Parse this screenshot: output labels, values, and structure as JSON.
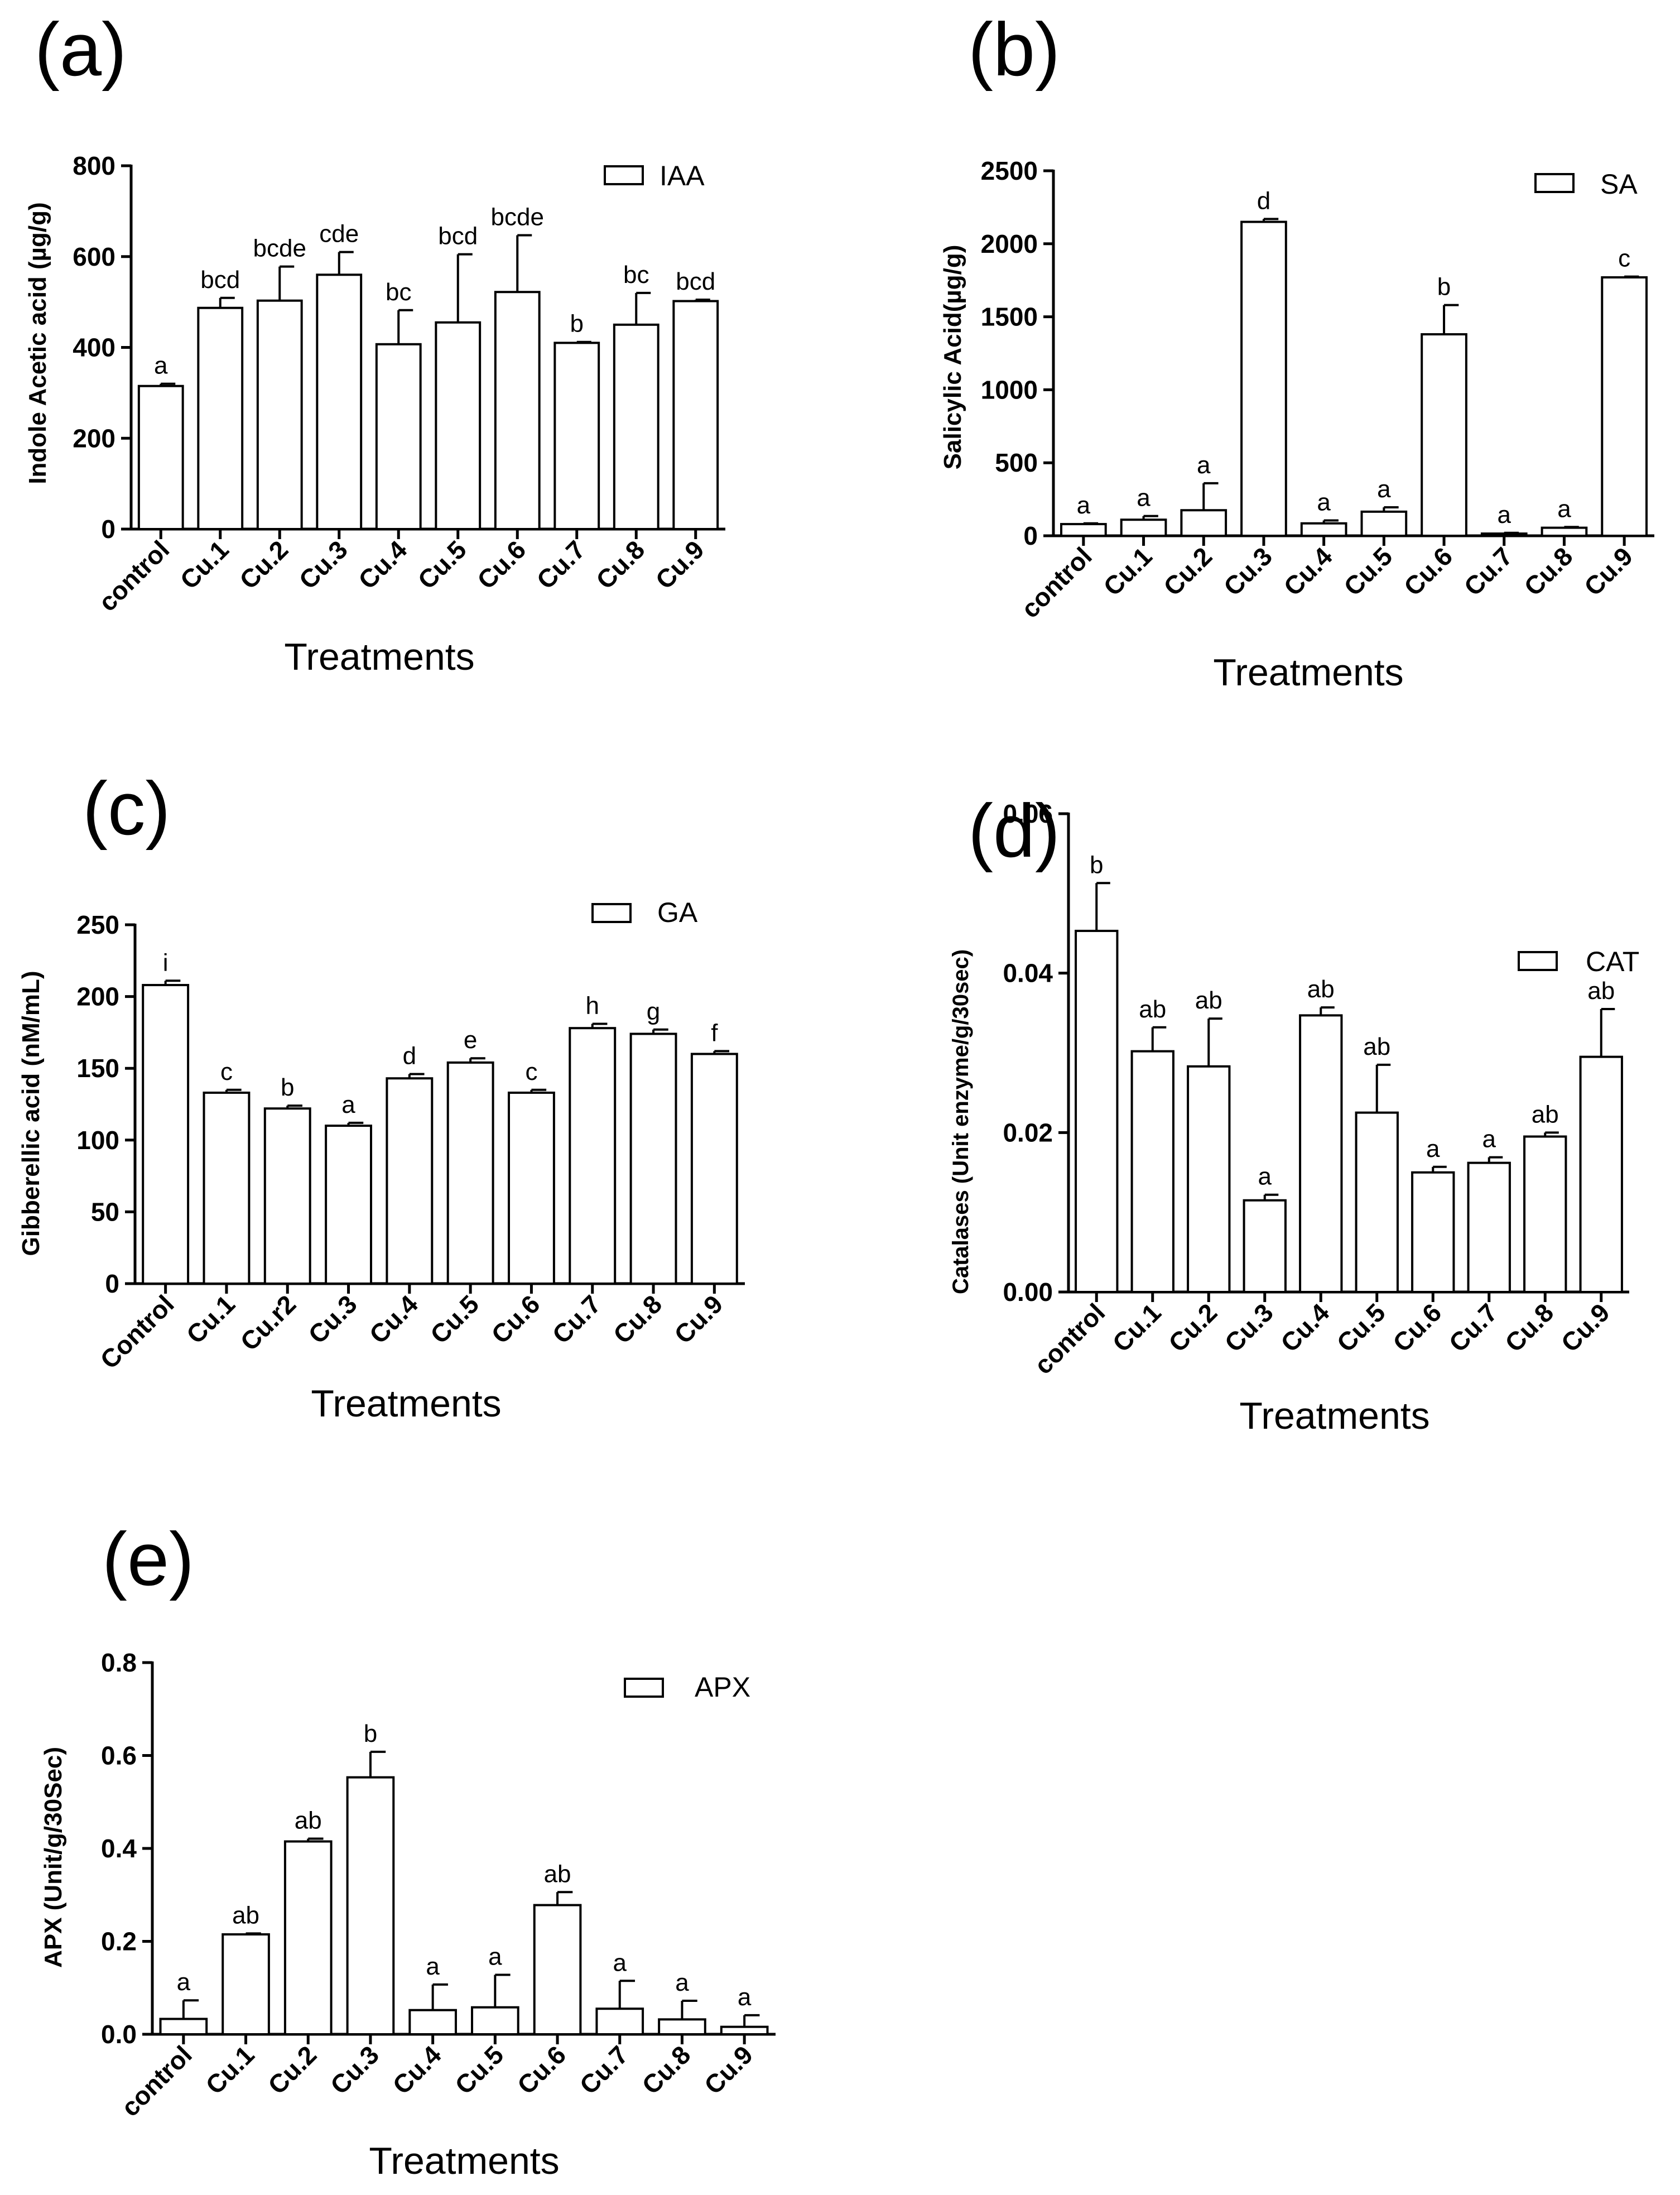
{
  "colors": {
    "bar_fill": "#ffffff",
    "stroke": "#000000",
    "background": "#ffffff"
  },
  "chart_data": [
    {
      "type": "bar",
      "panel_label": "(a)",
      "ylabel": "Indole Acetic acid (µg/g)",
      "xlabel": "Treatments",
      "legend": "IAA",
      "ylim": [
        0,
        800
      ],
      "yticks": [
        "0",
        "200",
        "400",
        "600",
        "800"
      ],
      "categories": [
        "control",
        "Cu.1",
        "Cu.2",
        "Cu.3",
        "Cu.4",
        "Cu.5",
        "Cu.6",
        "Cu.7",
        "Cu.8",
        "Cu.9"
      ],
      "values": [
        315,
        487,
        503,
        560,
        407,
        455,
        522,
        410,
        450,
        502
      ],
      "errors": [
        5,
        22,
        75,
        50,
        75,
        150,
        125,
        2,
        70,
        3
      ],
      "labels": [
        "a",
        "bcd",
        "bcde",
        "cde",
        "bc",
        "bcd",
        "bcde",
        "b",
        "bc",
        "bcd"
      ]
    },
    {
      "type": "bar",
      "panel_label": "(b)",
      "ylabel": "Salicylic Acid(µg/g)",
      "xlabel": "Treatments",
      "legend": "SA",
      "ylim": [
        0,
        2500
      ],
      "yticks": [
        "0",
        "500",
        "1000",
        "1500",
        "2000",
        "2500"
      ],
      "categories": [
        "control",
        "Cu.1",
        "Cu.2",
        "Cu.3",
        "Cu.4",
        "Cu.5",
        "Cu.6",
        "Cu.7",
        "Cu.8",
        "Cu.9"
      ],
      "values": [
        80,
        110,
        175,
        2150,
        85,
        165,
        1380,
        15,
        55,
        1770
      ],
      "errors": [
        5,
        25,
        185,
        20,
        20,
        30,
        200,
        5,
        5,
        5
      ],
      "labels": [
        "a",
        "a",
        "a",
        "d",
        "a",
        "a",
        "b",
        "a",
        "a",
        "c"
      ]
    },
    {
      "type": "bar",
      "panel_label": "(c)",
      "ylabel": "Gibberellic acid (nM/mL)",
      "xlabel": "Treatments",
      "legend": "GA",
      "ylim": [
        0,
        250
      ],
      "yticks": [
        "0",
        "50",
        "100",
        "150",
        "200",
        "250"
      ],
      "categories": [
        "Control",
        "Cu.1",
        "Cu.r2",
        "Cu.3",
        "Cu.4",
        "Cu.5",
        "Cu.6",
        "Cu.7",
        "Cu.8",
        "Cu.9"
      ],
      "values": [
        208,
        133,
        122,
        110,
        143,
        154,
        133,
        178,
        174,
        160
      ],
      "errors": [
        3,
        2,
        2,
        2,
        3,
        3,
        2,
        3,
        3,
        2
      ],
      "labels": [
        "i",
        "c",
        "b",
        "a",
        "d",
        "e",
        "c",
        "h",
        "g",
        "f"
      ]
    },
    {
      "type": "bar",
      "panel_label": "(d)",
      "ylabel": "Catalases (Unit enzyme/g/30sec)",
      "xlabel": "Treatments",
      "legend": "CAT",
      "ylim": [
        0,
        0.06
      ],
      "yticks": [
        "0.00",
        "0.02",
        "0.04",
        "0.06"
      ],
      "categories": [
        "control",
        "Cu.1",
        "Cu.2",
        "Cu.3",
        "Cu.4",
        "Cu.5",
        "Cu.6",
        "Cu.7",
        "Cu.8",
        "Cu.9"
      ],
      "values": [
        0.0453,
        0.0302,
        0.0283,
        0.0115,
        0.0347,
        0.0225,
        0.015,
        0.0162,
        0.0195,
        0.0295
      ],
      "errors": [
        0.006,
        0.003,
        0.006,
        0.0007,
        0.001,
        0.006,
        0.0007,
        0.0007,
        0.0005,
        0.006
      ],
      "labels": [
        "b",
        "ab",
        "ab",
        "a",
        "ab",
        "ab",
        "a",
        "a",
        "ab",
        "ab"
      ]
    },
    {
      "type": "bar",
      "panel_label": "(e)",
      "ylabel": "APX (Unit/g/30Sec)",
      "xlabel": "Treatments",
      "legend": "APX",
      "ylim": [
        0,
        0.8
      ],
      "yticks": [
        "0.0",
        "0.2",
        "0.4",
        "0.6",
        "0.8"
      ],
      "categories": [
        "control",
        "Cu.1",
        "Cu.2",
        "Cu.3",
        "Cu.4",
        "Cu.5",
        "Cu.6",
        "Cu.7",
        "Cu.8",
        "Cu.9"
      ],
      "values": [
        0.033,
        0.215,
        0.415,
        0.553,
        0.052,
        0.058,
        0.278,
        0.055,
        0.032,
        0.016
      ],
      "errors": [
        0.04,
        0.002,
        0.006,
        0.055,
        0.055,
        0.07,
        0.028,
        0.06,
        0.04,
        0.025
      ],
      "labels": [
        "a",
        "ab",
        "ab",
        "b",
        "a",
        "a",
        "ab",
        "a",
        "a",
        "a"
      ]
    }
  ]
}
